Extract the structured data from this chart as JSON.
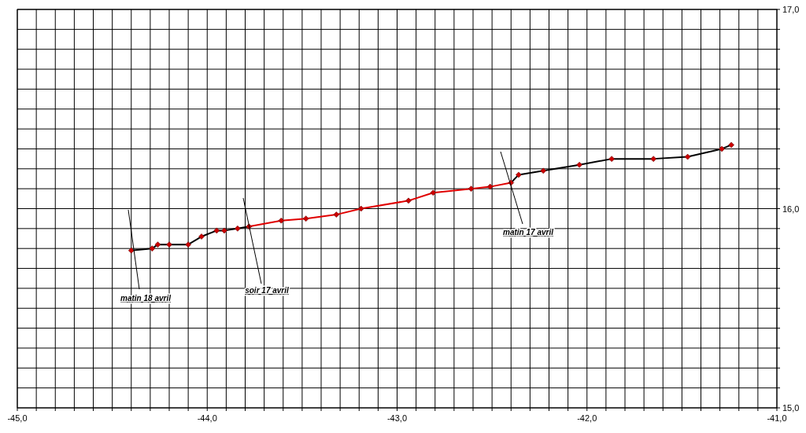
{
  "chart_data": {
    "type": "line",
    "xlim": [
      -45,
      -41
    ],
    "ylim": [
      15,
      17
    ],
    "xticks": [
      {
        "value": -45,
        "label": "-45,0"
      },
      {
        "value": -44.9,
        "label": null
      },
      {
        "value": -44.8,
        "label": null
      },
      {
        "value": -44.7,
        "label": null
      },
      {
        "value": -44.6,
        "label": null
      },
      {
        "value": -44.5,
        "label": null
      },
      {
        "value": -44.4,
        "label": null
      },
      {
        "value": -44.3,
        "label": null
      },
      {
        "value": -44.2,
        "label": null
      },
      {
        "value": -44.1,
        "label": null
      },
      {
        "value": -44,
        "label": "-44,0"
      },
      {
        "value": -43.9,
        "label": null
      },
      {
        "value": -43.8,
        "label": null
      },
      {
        "value": -43.7,
        "label": null
      },
      {
        "value": -43.6,
        "label": null
      },
      {
        "value": -43.5,
        "label": null
      },
      {
        "value": -43.4,
        "label": null
      },
      {
        "value": -43.3,
        "label": null
      },
      {
        "value": -43.2,
        "label": null
      },
      {
        "value": -43.1,
        "label": null
      },
      {
        "value": -43,
        "label": "-43,0"
      },
      {
        "value": -42.9,
        "label": null
      },
      {
        "value": -42.8,
        "label": null
      },
      {
        "value": -42.7,
        "label": null
      },
      {
        "value": -42.6,
        "label": null
      },
      {
        "value": -42.5,
        "label": null
      },
      {
        "value": -42.4,
        "label": null
      },
      {
        "value": -42.3,
        "label": null
      },
      {
        "value": -42.2,
        "label": null
      },
      {
        "value": -42.1,
        "label": null
      },
      {
        "value": -42,
        "label": "-42,0"
      },
      {
        "value": -41.9,
        "label": null
      },
      {
        "value": -41.8,
        "label": null
      },
      {
        "value": -41.7,
        "label": null
      },
      {
        "value": -41.6,
        "label": null
      },
      {
        "value": -41.5,
        "label": null
      },
      {
        "value": -41.4,
        "label": null
      },
      {
        "value": -41.3,
        "label": null
      },
      {
        "value": -41.2,
        "label": null
      },
      {
        "value": -41.1,
        "label": null
      },
      {
        "value": -41,
        "label": "-41,0"
      }
    ],
    "yticks": [
      {
        "value": 15,
        "label": "15,0"
      },
      {
        "value": 15.1,
        "label": null
      },
      {
        "value": 15.2,
        "label": null
      },
      {
        "value": 15.3,
        "label": null
      },
      {
        "value": 15.4,
        "label": null
      },
      {
        "value": 15.5,
        "label": null
      },
      {
        "value": 15.6,
        "label": null
      },
      {
        "value": 15.7,
        "label": null
      },
      {
        "value": 15.8,
        "label": null
      },
      {
        "value": 15.9,
        "label": null
      },
      {
        "value": 16,
        "label": "16,0"
      },
      {
        "value": 16.1,
        "label": null
      },
      {
        "value": 16.2,
        "label": null
      },
      {
        "value": 16.3,
        "label": null
      },
      {
        "value": 16.4,
        "label": null
      },
      {
        "value": 16.5,
        "label": null
      },
      {
        "value": 16.6,
        "label": null
      },
      {
        "value": 16.7,
        "label": null
      },
      {
        "value": 16.8,
        "label": null
      },
      {
        "value": 16.9,
        "label": null
      },
      {
        "value": 17,
        "label": "17,0"
      }
    ],
    "grid": true,
    "series": [
      {
        "color": "#000000",
        "marker": "none",
        "x": [
          -44.4,
          -44.29,
          -44.26,
          -44.2,
          -44.1,
          -44.03,
          -43.95,
          -43.91,
          -43.84,
          -43.78
        ],
        "values": [
          15.79,
          15.8,
          15.82,
          15.82,
          15.82,
          15.86,
          15.89,
          15.89,
          15.9,
          15.91
        ]
      },
      {
        "color": "#e00000",
        "marker": "none",
        "x": [
          -43.78,
          -43.61,
          -43.48,
          -43.32,
          -43.19,
          -42.94,
          -42.81,
          -42.61,
          -42.51,
          -42.4
        ],
        "values": [
          15.91,
          15.94,
          15.95,
          15.97,
          16.0,
          16.04,
          16.08,
          16.1,
          16.11,
          16.13
        ]
      },
      {
        "color": "#000000",
        "marker": "none",
        "x": [
          -42.4,
          -42.36,
          -42.23,
          -42.04,
          -41.87,
          -41.65,
          -41.47,
          -41.29,
          -41.24
        ],
        "values": [
          16.13,
          16.17,
          16.19,
          16.22,
          16.25,
          16.25,
          16.26,
          16.3,
          16.32
        ]
      },
      {
        "type": "scatter",
        "color": "#cc0000",
        "marker": "diamond",
        "x": [
          -44.4,
          -44.29,
          -44.26,
          -44.2,
          -44.1,
          -44.03,
          -43.95,
          -43.91,
          -43.84,
          -43.78,
          -43.61,
          -43.48,
          -43.32,
          -43.19,
          -42.94,
          -42.81,
          -42.61,
          -42.51,
          -42.4,
          -42.36,
          -42.23,
          -42.04,
          -41.87,
          -41.65,
          -41.47,
          -41.29,
          -41.24
        ],
        "values": [
          15.79,
          15.8,
          15.82,
          15.82,
          15.82,
          15.86,
          15.89,
          15.89,
          15.9,
          15.91,
          15.94,
          15.95,
          15.97,
          16.0,
          16.04,
          16.08,
          16.1,
          16.11,
          16.13,
          16.17,
          16.19,
          16.22,
          16.25,
          16.25,
          16.26,
          16.3,
          16.32
        ]
      }
    ],
    "annotations": [
      "matin 18 avril",
      "soir 17 avril",
      "matin 17 avril"
    ]
  }
}
